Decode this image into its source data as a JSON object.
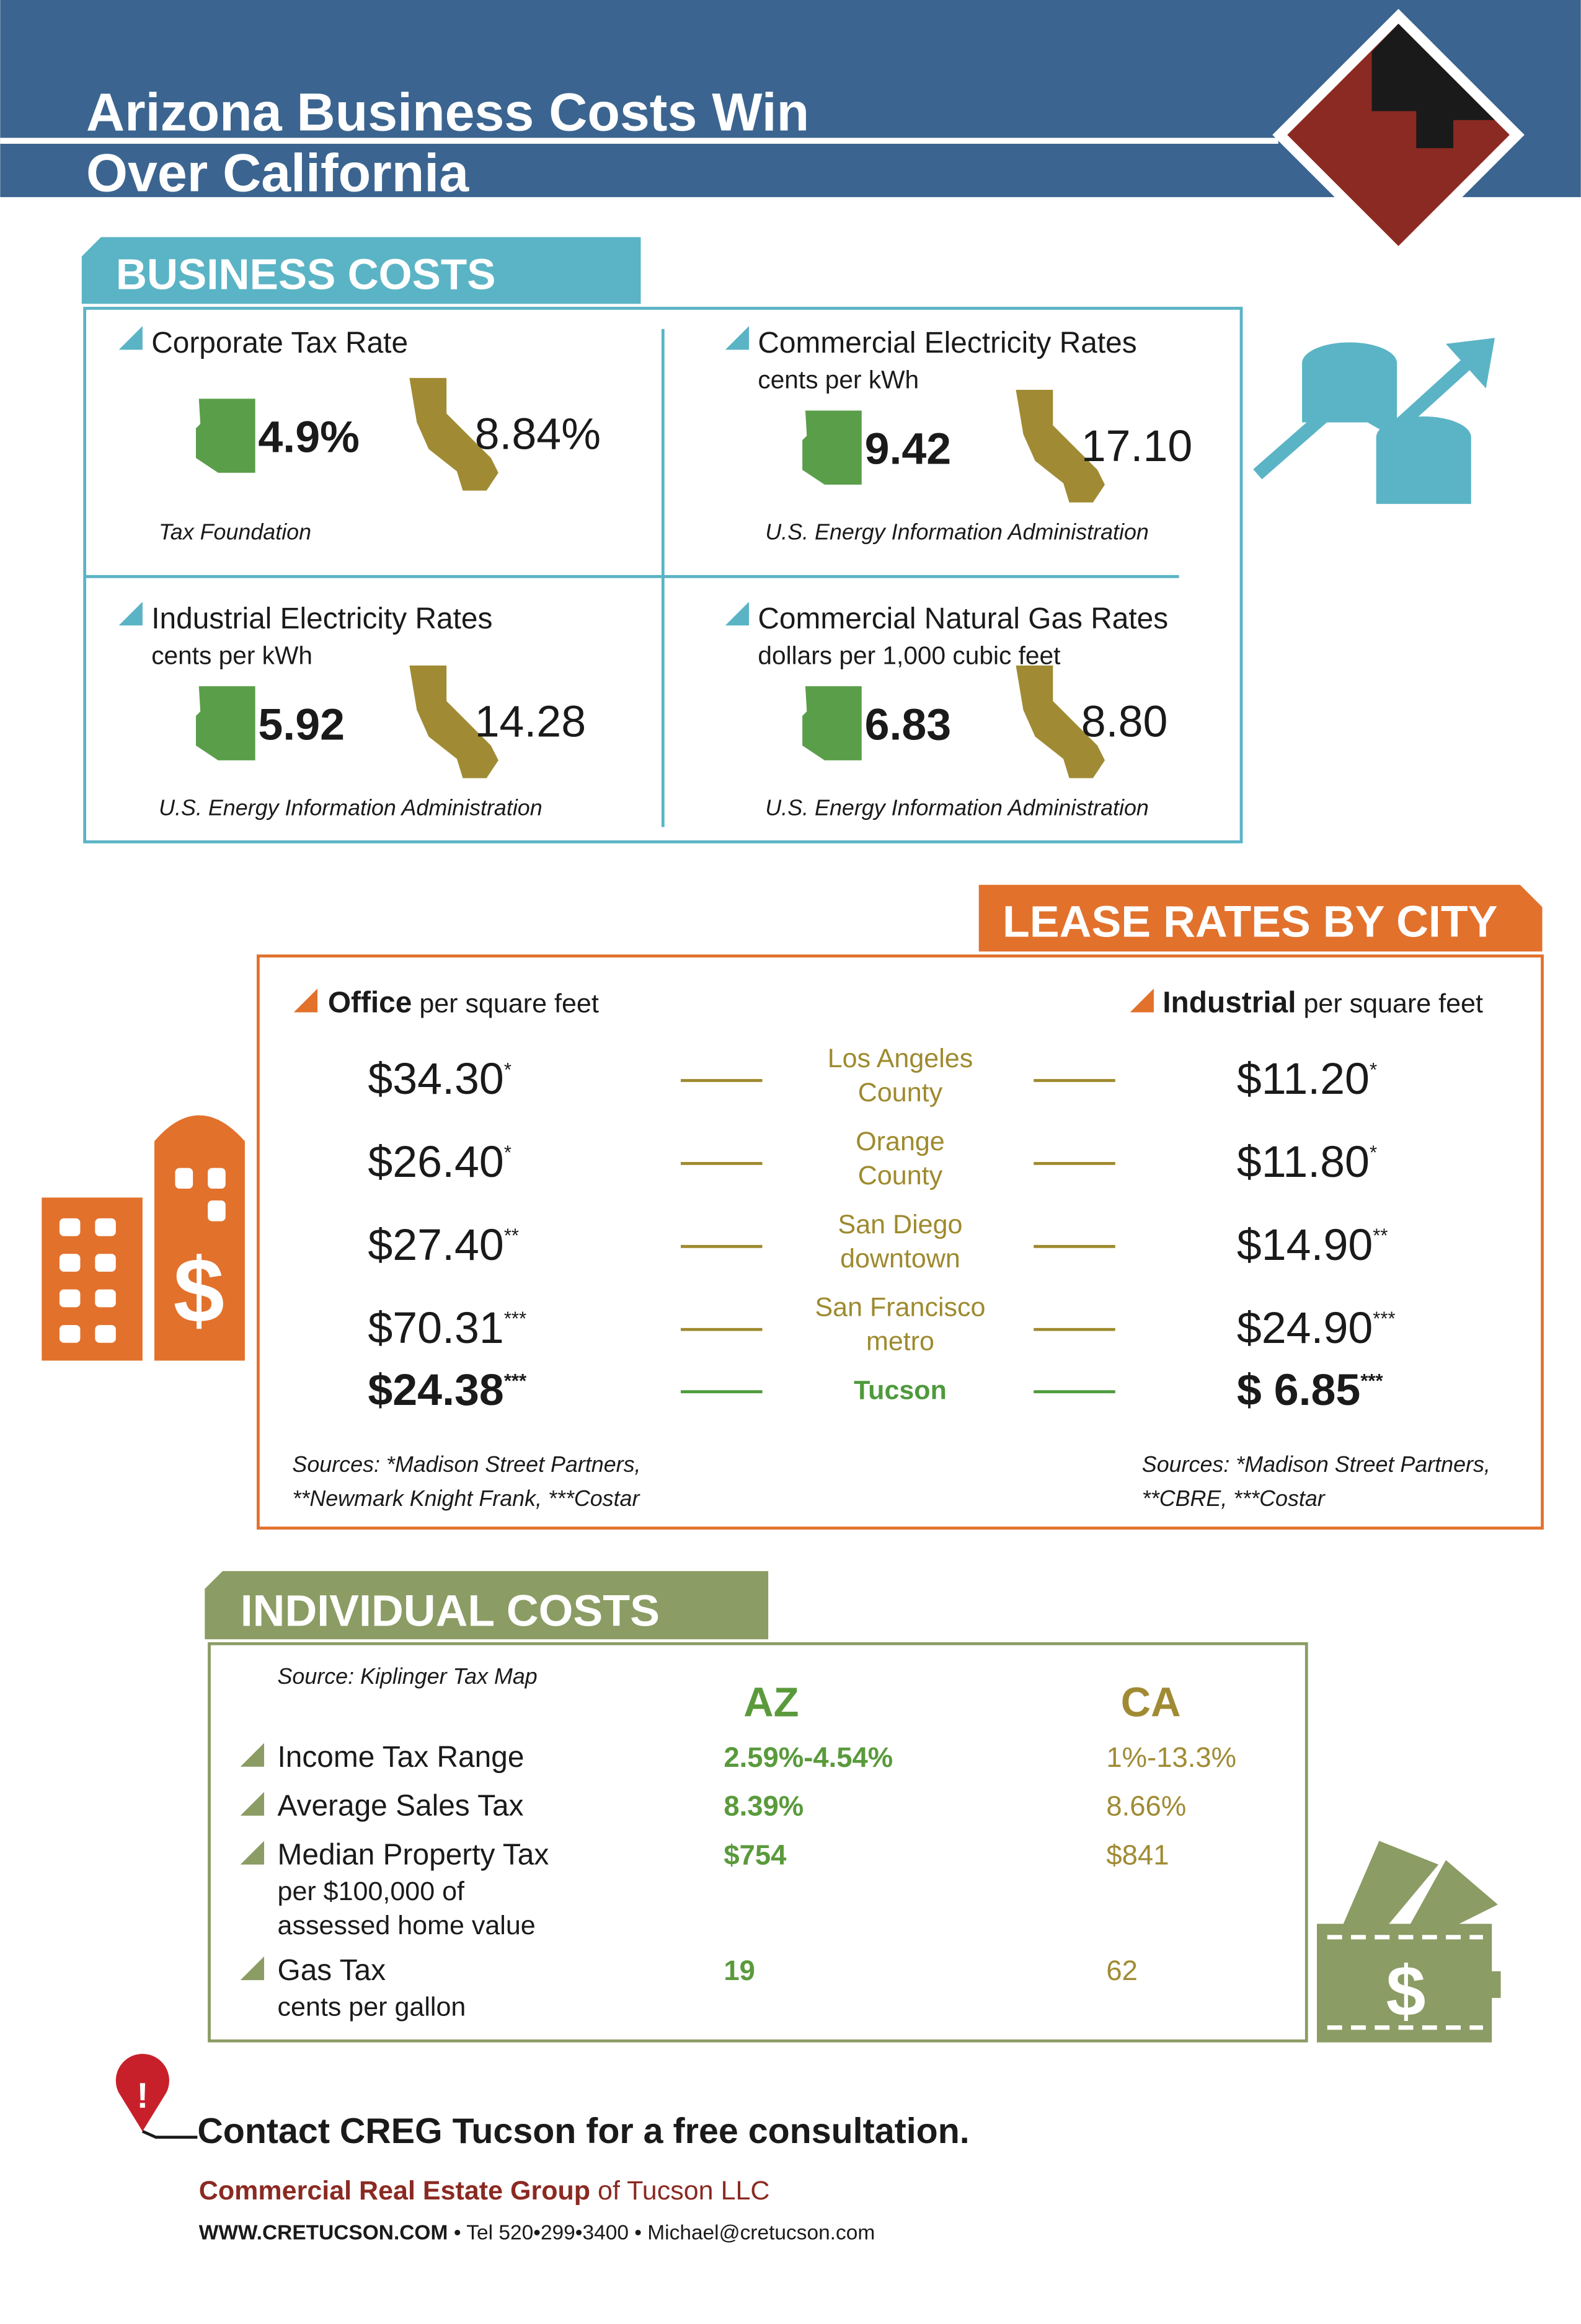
{
  "header": {
    "title_lines": [
      "Arizona Business Costs Win",
      "Over California"
    ]
  },
  "business_costs": {
    "heading": "BUSINESS COSTS",
    "items": [
      {
        "title": "Corporate Tax Rate",
        "az": "4.9%",
        "ca": "8.84%",
        "source": "Tax Foundation"
      },
      {
        "title": "Commercial Electricity Rates",
        "subtitle": "cents per kWh",
        "az": "9.42",
        "ca": "17.10",
        "source": "U.S. Energy Information Administration"
      },
      {
        "title": "Industrial Electricity Rates",
        "subtitle": "cents per kWh",
        "az": "5.92",
        "ca": "14.28",
        "source": "U.S. Energy Information Administration"
      },
      {
        "title": "Commercial Natural Gas Rates",
        "subtitle": "dollars per 1,000 cubic feet",
        "az": "6.83",
        "ca": "8.80",
        "source": "U.S. Energy Information Administration"
      }
    ]
  },
  "lease_rates": {
    "heading": "LEASE RATES BY CITY",
    "office_label": "Office",
    "office_unit": "per square feet",
    "industrial_label": "Industrial",
    "industrial_unit": "per square feet",
    "rows": [
      {
        "city_lines": [
          "Los Angeles",
          "County"
        ],
        "office": "$34.30",
        "office_note": "*",
        "industrial": "$11.20",
        "industrial_note": "*"
      },
      {
        "city_lines": [
          "Orange",
          "County"
        ],
        "office": "$26.40",
        "office_note": "*",
        "industrial": "$11.80",
        "industrial_note": "*"
      },
      {
        "city_lines": [
          "San Diego",
          "downtown"
        ],
        "office": "$27.40",
        "office_note": "**",
        "industrial": "$14.90",
        "industrial_note": "**"
      },
      {
        "city_lines": [
          "San Francisco",
          "metro"
        ],
        "office": "$70.31",
        "office_note": "***",
        "industrial": "$24.90",
        "industrial_note": "***"
      },
      {
        "city_lines": [
          "Tucson"
        ],
        "office": "$24.38",
        "office_note": "***",
        "industrial": "$ 6.85",
        "industrial_note": "***"
      }
    ],
    "office_sources": [
      "Sources: *Madison Street Partners,",
      "**Newmark Knight Frank, ***Costar"
    ],
    "industrial_sources": [
      "Sources: *Madison Street Partners,",
      "**CBRE, ***Costar"
    ]
  },
  "individual_costs": {
    "heading": "INDIVIDUAL COSTS",
    "source": "Source: Kiplinger Tax Map",
    "col_az": "AZ",
    "col_ca": "CA",
    "rows": [
      {
        "label": "Income Tax Range",
        "az": "2.59%-4.54%",
        "ca": "1%-13.3%"
      },
      {
        "label": "Average Sales Tax",
        "az": "8.39%",
        "ca": "8.66%"
      },
      {
        "label": "Median Property Tax",
        "notes": [
          "per $100,000 of",
          "assessed home value"
        ],
        "az": "$754",
        "ca": "$841"
      },
      {
        "label": "Gas Tax",
        "notes": [
          "cents per gallon"
        ],
        "az": "19",
        "ca": "62"
      }
    ]
  },
  "footer": {
    "cta": "Contact CREG Tucson for a free consultation.",
    "company": "Commercial Real Estate Group",
    "company_suffix": "of Tucson LLC",
    "website": "WWW.CRETUCSON.COM",
    "contact": "• Tel 520•299•3400 • Michael@cretucson.com"
  }
}
